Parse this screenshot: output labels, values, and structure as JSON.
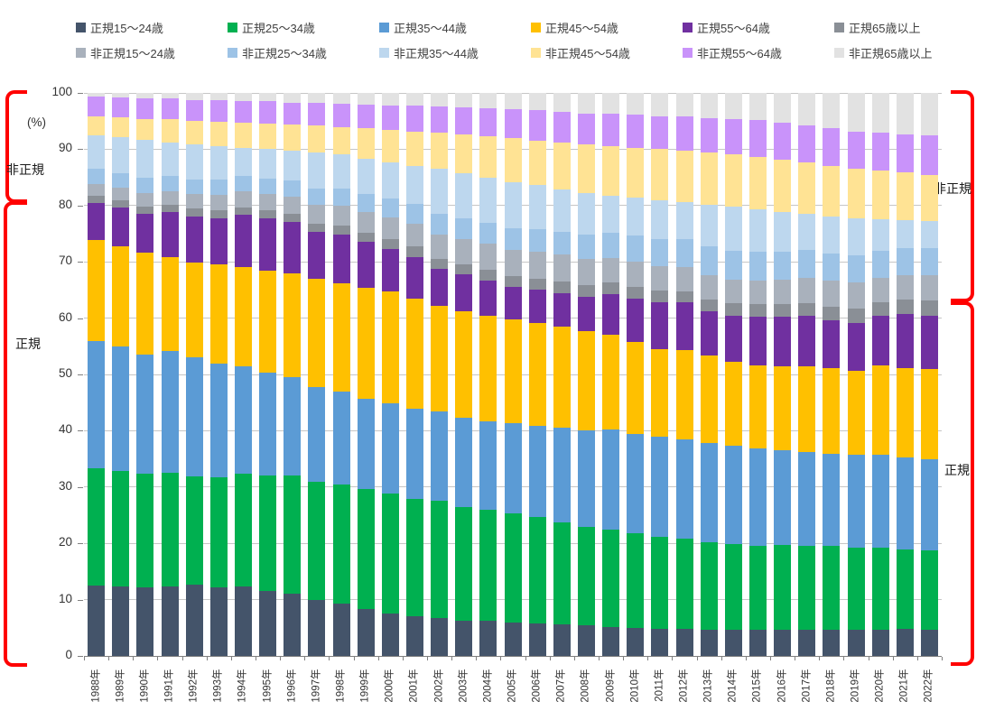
{
  "chart_data": {
    "type": "bar",
    "stacked": true,
    "percent_stacked": true,
    "title": "",
    "xlabel": "",
    "ylabel": "(%)",
    "ylim": [
      0,
      100
    ],
    "y_step": 10,
    "y_ticks": [
      0,
      10,
      20,
      30,
      40,
      50,
      60,
      70,
      80,
      90,
      100
    ],
    "grid": true,
    "legend_position": "top",
    "categories": [
      "1988年",
      "1989年",
      "1990年",
      "1991年",
      "1992年",
      "1993年",
      "1994年",
      "1995年",
      "1996年",
      "1997年",
      "1998年",
      "1999年",
      "2000年",
      "2001年",
      "2002年",
      "2003年",
      "2004年",
      "2005年",
      "2006年",
      "2007年",
      "2008年",
      "2009年",
      "2010年",
      "2011年",
      "2012年",
      "2013年",
      "2014年",
      "2015年",
      "2016年",
      "2017年",
      "2018年",
      "2019年",
      "2020年",
      "2021年",
      "2022年"
    ],
    "series": [
      {
        "name": "正規15〜24歳",
        "color": "#44546A",
        "values": [
          12.5,
          12.4,
          12.2,
          12.3,
          12.7,
          12.2,
          12.3,
          11.5,
          11.0,
          10.0,
          9.3,
          8.4,
          7.5,
          7.0,
          6.7,
          6.3,
          6.2,
          5.9,
          5.7,
          5.6,
          5.4,
          5.2,
          5.0,
          4.8,
          4.8,
          4.7,
          4.6,
          4.6,
          4.7,
          4.7,
          4.7,
          4.7,
          4.6,
          4.8,
          4.7
        ]
      },
      {
        "name": "正規25〜34歳",
        "color": "#00B050",
        "values": [
          20.9,
          20.4,
          20.1,
          20.2,
          19.2,
          19.6,
          20.0,
          20.6,
          21.1,
          20.9,
          21.2,
          21.3,
          21.3,
          20.9,
          20.8,
          20.1,
          19.7,
          19.5,
          19.0,
          18.2,
          17.6,
          17.3,
          16.8,
          16.4,
          16.0,
          15.5,
          15.2,
          15.0,
          15.0,
          14.9,
          14.8,
          14.5,
          14.7,
          14.1,
          14.1
        ]
      },
      {
        "name": "正規35〜44歳",
        "color": "#5B9BD5",
        "values": [
          22.5,
          22.1,
          21.3,
          21.6,
          21.2,
          20.1,
          19.1,
          18.3,
          17.5,
          16.9,
          16.5,
          16.0,
          16.1,
          16.0,
          15.9,
          15.9,
          15.8,
          16.0,
          16.1,
          16.7,
          17.1,
          17.8,
          17.7,
          17.7,
          17.6,
          17.6,
          17.5,
          17.3,
          16.8,
          16.6,
          16.4,
          16.5,
          16.4,
          16.3,
          16.1
        ]
      },
      {
        "name": "正規45〜54歳",
        "color": "#FFC000",
        "values": [
          18.0,
          17.9,
          18.0,
          16.8,
          16.8,
          17.6,
          17.7,
          18.1,
          18.3,
          19.2,
          19.2,
          19.7,
          19.8,
          19.6,
          18.8,
          19.0,
          18.8,
          18.4,
          18.4,
          18.0,
          17.6,
          16.7,
          16.3,
          15.6,
          15.9,
          15.5,
          14.9,
          14.7,
          14.9,
          15.3,
          15.2,
          15.0,
          15.9,
          16.0,
          16.1
        ]
      },
      {
        "name": "正規55〜64歳",
        "color": "#7030A0",
        "values": [
          6.5,
          6.8,
          6.9,
          8.0,
          8.2,
          8.3,
          9.2,
          9.2,
          9.2,
          8.3,
          8.6,
          8.1,
          7.6,
          7.3,
          6.6,
          6.5,
          6.2,
          5.7,
          5.9,
          6.0,
          6.1,
          7.2,
          7.7,
          8.4,
          8.5,
          7.9,
          8.2,
          8.6,
          8.8,
          8.9,
          8.6,
          8.5,
          8.8,
          9.6,
          9.5
        ]
      },
      {
        "name": "正規65歳以上",
        "color": "#8A8F96",
        "values": [
          1.3,
          1.3,
          1.3,
          1.3,
          1.4,
          1.4,
          1.4,
          1.4,
          1.4,
          1.5,
          1.6,
          1.6,
          1.7,
          2.0,
          1.8,
          1.8,
          1.9,
          1.9,
          1.9,
          2.0,
          2.1,
          2.1,
          2.1,
          2.0,
          2.0,
          2.1,
          2.2,
          2.3,
          2.3,
          2.3,
          2.4,
          2.5,
          2.4,
          2.5,
          2.6
        ]
      },
      {
        "name": "非正規15〜24歳",
        "color": "#A9B1BC",
        "values": [
          2.2,
          2.3,
          2.4,
          2.4,
          2.5,
          2.7,
          2.8,
          2.9,
          3.0,
          3.3,
          3.5,
          3.7,
          3.9,
          4.0,
          4.3,
          4.5,
          4.6,
          4.7,
          4.8,
          4.8,
          4.7,
          4.4,
          4.5,
          4.4,
          4.3,
          4.4,
          4.3,
          4.2,
          4.3,
          4.4,
          4.5,
          4.6,
          4.4,
          4.4,
          4.5
        ]
      },
      {
        "name": "非正規25〜34歳",
        "color": "#9DC3E6",
        "values": [
          2.6,
          2.6,
          2.7,
          2.7,
          2.7,
          2.8,
          2.8,
          2.8,
          2.9,
          3.0,
          3.1,
          3.2,
          3.3,
          3.5,
          3.6,
          3.7,
          3.8,
          3.9,
          4.0,
          4.1,
          4.2,
          4.4,
          4.6,
          4.8,
          4.9,
          5.0,
          5.1,
          5.1,
          5.0,
          5.0,
          4.9,
          4.9,
          4.8,
          4.8,
          4.8
        ]
      },
      {
        "name": "非正規35〜44歳",
        "color": "#BDD7EE",
        "values": [
          5.9,
          6.3,
          6.7,
          5.9,
          6.1,
          5.9,
          5.0,
          5.3,
          5.4,
          6.4,
          6.1,
          6.3,
          6.4,
          6.7,
          8.0,
          8.0,
          8.0,
          8.2,
          7.8,
          7.5,
          7.4,
          6.7,
          6.7,
          6.9,
          6.7,
          7.5,
          7.8,
          7.5,
          7.1,
          6.4,
          6.6,
          6.5,
          5.6,
          4.9,
          4.8
        ]
      },
      {
        "name": "非正規45〜54歳",
        "color": "#FFE394",
        "values": [
          3.5,
          3.6,
          3.8,
          4.1,
          4.3,
          4.3,
          4.5,
          4.5,
          4.6,
          4.7,
          4.9,
          5.4,
          5.9,
          6.2,
          6.5,
          6.9,
          7.4,
          7.8,
          8.0,
          8.3,
          8.6,
          8.8,
          8.9,
          9.1,
          9.1,
          9.3,
          9.3,
          9.4,
          9.2,
          9.1,
          9.0,
          8.8,
          8.7,
          8.5,
          8.3
        ]
      },
      {
        "name": "非正規55〜64歳",
        "color": "#C993FA",
        "values": [
          3.4,
          3.5,
          3.7,
          3.7,
          3.7,
          3.8,
          3.8,
          3.9,
          3.9,
          4.0,
          4.1,
          4.3,
          4.3,
          4.5,
          4.6,
          4.8,
          4.9,
          5.1,
          5.3,
          5.5,
          5.6,
          5.7,
          5.8,
          5.8,
          6.0,
          6.1,
          6.3,
          6.5,
          6.6,
          6.6,
          6.6,
          6.7,
          6.7,
          6.8,
          7.0
        ]
      },
      {
        "name": "非正規65歳以上",
        "color": "#E2E2E2",
        "values": [
          0.7,
          0.8,
          0.9,
          1.0,
          1.2,
          1.3,
          1.4,
          1.5,
          1.7,
          1.8,
          1.9,
          2.0,
          2.2,
          2.3,
          2.4,
          2.5,
          2.7,
          2.9,
          3.1,
          3.3,
          3.6,
          3.7,
          3.9,
          4.1,
          4.2,
          4.4,
          4.6,
          4.8,
          5.3,
          5.8,
          6.3,
          6.8,
          7.0,
          7.3,
          7.5
        ]
      }
    ],
    "annotations": {
      "unit_label": "(%)",
      "bracket_color": "#FF0000",
      "left_brackets": [
        {
          "label": "非正規",
          "from_pct": 100,
          "to_pct": 81.7
        },
        {
          "label": "正規",
          "from_pct": 81.0,
          "to_pct": 0
        }
      ],
      "right_brackets": [
        {
          "label": "非正規",
          "from_pct": 100,
          "to_pct": 63.6
        },
        {
          "label": "正規",
          "from_pct": 62.6,
          "to_pct": 0
        }
      ]
    }
  }
}
